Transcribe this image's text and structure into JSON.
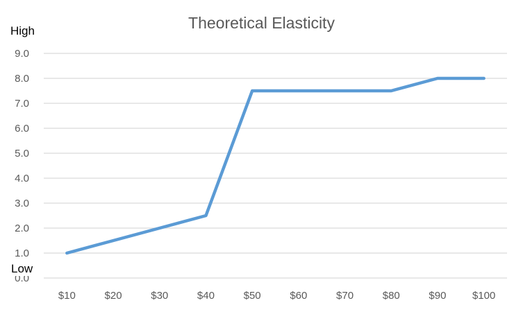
{
  "chart_data": {
    "type": "line",
    "title": "Theoretical Elasticity",
    "categories": [
      "$10",
      "$20",
      "$30",
      "$40",
      "$50",
      "$60",
      "$70",
      "$80",
      "$90",
      "$100"
    ],
    "series": [
      {
        "values": [
          1.0,
          1.5,
          2.0,
          2.5,
          7.5,
          7.5,
          7.5,
          7.5,
          8.0,
          8.0
        ],
        "color": "#5B9BD5"
      }
    ],
    "ylim": [
      0,
      9
    ],
    "yticks": [
      "0.0",
      "1.0",
      "2.0",
      "3.0",
      "4.0",
      "5.0",
      "6.0",
      "7.0",
      "8.0",
      "9.0"
    ],
    "y_high_label": "High",
    "y_low_label": "Low",
    "grid": true,
    "gridline_color": "#D9D9D9",
    "tick_label_color": "#595959"
  }
}
